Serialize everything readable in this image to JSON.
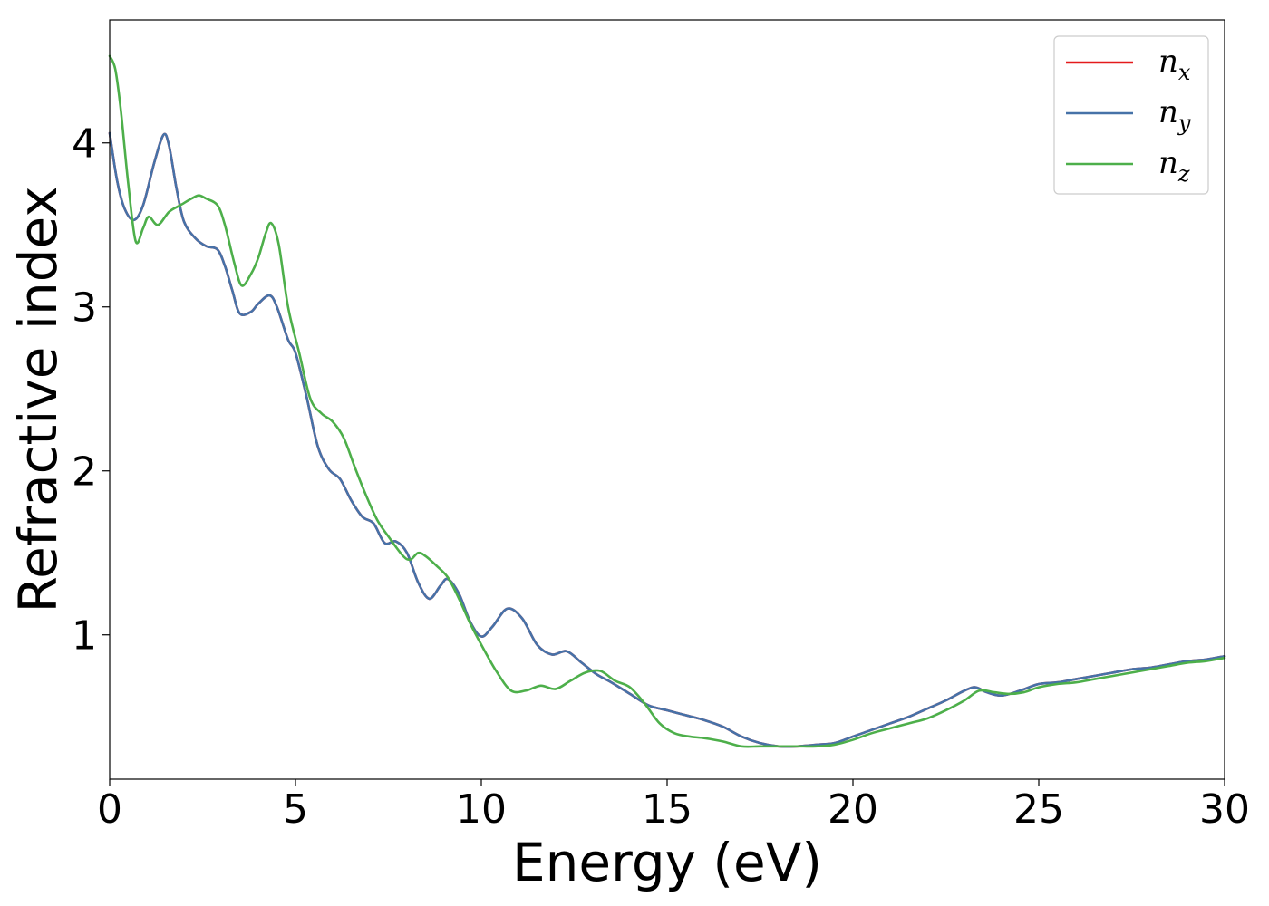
{
  "chart_data": {
    "type": "line",
    "xlabel": "Energy (eV)",
    "ylabel": "Refractive index",
    "xlim": [
      0,
      30
    ],
    "ylim": [
      0.12,
      4.75
    ],
    "xticks": [
      0,
      5,
      10,
      15,
      20,
      25,
      30
    ],
    "xtick_labels": [
      "0",
      "5",
      "10",
      "15",
      "20",
      "25",
      "30"
    ],
    "yticks": [
      1,
      2,
      3,
      4
    ],
    "ytick_labels": [
      "1",
      "2",
      "3",
      "4"
    ],
    "grid": false,
    "legend_position": "top-right",
    "series": [
      {
        "name": "n_x",
        "legend_main": "n",
        "legend_sub": "x",
        "color": "#e41a1c",
        "x": [
          0,
          0.2,
          0.4,
          0.65,
          0.9,
          1.2,
          1.45,
          1.6,
          1.8,
          2.0,
          2.3,
          2.6,
          2.9,
          3.1,
          3.3,
          3.5,
          3.8,
          4.0,
          4.3,
          4.5,
          4.8,
          5.0,
          5.3,
          5.6,
          5.9,
          6.2,
          6.5,
          6.8,
          7.1,
          7.4,
          7.7,
          8.0,
          8.3,
          8.6,
          8.9,
          9.1,
          9.4,
          9.7,
          10.0,
          10.3,
          10.7,
          11.1,
          11.5,
          11.9,
          12.3,
          12.7,
          13.1,
          13.5,
          14.0,
          14.5,
          15.0,
          15.5,
          16.0,
          16.5,
          17.0,
          17.5,
          18.0,
          18.5,
          19.0,
          19.5,
          20.0,
          20.5,
          21.0,
          21.5,
          22.0,
          22.5,
          23.0,
          23.3,
          23.6,
          24.0,
          24.5,
          25.0,
          25.5,
          26.0,
          26.5,
          27.0,
          27.5,
          28.0,
          28.5,
          29.0,
          29.5,
          30.0
        ],
        "y": [
          4.06,
          3.77,
          3.6,
          3.53,
          3.62,
          3.88,
          4.05,
          3.98,
          3.72,
          3.52,
          3.42,
          3.37,
          3.35,
          3.25,
          3.1,
          2.96,
          2.97,
          3.02,
          3.07,
          3.0,
          2.8,
          2.72,
          2.45,
          2.15,
          2.01,
          1.95,
          1.82,
          1.72,
          1.68,
          1.56,
          1.57,
          1.5,
          1.32,
          1.22,
          1.3,
          1.34,
          1.25,
          1.08,
          0.99,
          1.05,
          1.16,
          1.1,
          0.94,
          0.88,
          0.9,
          0.83,
          0.76,
          0.71,
          0.64,
          0.57,
          0.54,
          0.51,
          0.48,
          0.44,
          0.38,
          0.34,
          0.32,
          0.32,
          0.33,
          0.34,
          0.38,
          0.42,
          0.46,
          0.5,
          0.55,
          0.6,
          0.66,
          0.68,
          0.65,
          0.63,
          0.66,
          0.7,
          0.71,
          0.73,
          0.75,
          0.77,
          0.79,
          0.8,
          0.82,
          0.84,
          0.85,
          0.87
        ]
      },
      {
        "name": "n_y",
        "legend_main": "n",
        "legend_sub": "y",
        "color": "#4672a8",
        "x": [
          0,
          0.2,
          0.4,
          0.65,
          0.9,
          1.2,
          1.45,
          1.6,
          1.8,
          2.0,
          2.3,
          2.6,
          2.9,
          3.1,
          3.3,
          3.5,
          3.8,
          4.0,
          4.3,
          4.5,
          4.8,
          5.0,
          5.3,
          5.6,
          5.9,
          6.2,
          6.5,
          6.8,
          7.1,
          7.4,
          7.7,
          8.0,
          8.3,
          8.6,
          8.9,
          9.1,
          9.4,
          9.7,
          10.0,
          10.3,
          10.7,
          11.1,
          11.5,
          11.9,
          12.3,
          12.7,
          13.1,
          13.5,
          14.0,
          14.5,
          15.0,
          15.5,
          16.0,
          16.5,
          17.0,
          17.5,
          18.0,
          18.5,
          19.0,
          19.5,
          20.0,
          20.5,
          21.0,
          21.5,
          22.0,
          22.5,
          23.0,
          23.3,
          23.6,
          24.0,
          24.5,
          25.0,
          25.5,
          26.0,
          26.5,
          27.0,
          27.5,
          28.0,
          28.5,
          29.0,
          29.5,
          30.0
        ],
        "y": [
          4.06,
          3.77,
          3.6,
          3.53,
          3.62,
          3.88,
          4.05,
          3.98,
          3.72,
          3.52,
          3.42,
          3.37,
          3.35,
          3.25,
          3.1,
          2.96,
          2.97,
          3.02,
          3.07,
          3.0,
          2.8,
          2.72,
          2.45,
          2.15,
          2.01,
          1.95,
          1.82,
          1.72,
          1.68,
          1.56,
          1.57,
          1.5,
          1.32,
          1.22,
          1.3,
          1.34,
          1.25,
          1.08,
          0.99,
          1.05,
          1.16,
          1.1,
          0.94,
          0.88,
          0.9,
          0.83,
          0.76,
          0.71,
          0.64,
          0.57,
          0.54,
          0.51,
          0.48,
          0.44,
          0.38,
          0.34,
          0.32,
          0.32,
          0.33,
          0.34,
          0.38,
          0.42,
          0.46,
          0.5,
          0.55,
          0.6,
          0.66,
          0.68,
          0.65,
          0.63,
          0.66,
          0.7,
          0.71,
          0.73,
          0.75,
          0.77,
          0.79,
          0.8,
          0.82,
          0.84,
          0.85,
          0.87
        ]
      },
      {
        "name": "n_z",
        "legend_main": "n",
        "legend_sub": "z",
        "color": "#4daf4a",
        "x": [
          0,
          0.15,
          0.3,
          0.5,
          0.7,
          0.9,
          1.05,
          1.3,
          1.6,
          1.9,
          2.2,
          2.4,
          2.6,
          2.9,
          3.1,
          3.35,
          3.55,
          3.8,
          4.0,
          4.2,
          4.35,
          4.55,
          4.8,
          5.1,
          5.4,
          5.7,
          6.0,
          6.3,
          6.6,
          6.9,
          7.2,
          7.5,
          7.9,
          8.1,
          8.3,
          8.5,
          8.8,
          9.1,
          9.4,
          9.7,
          10.0,
          10.4,
          10.8,
          11.2,
          11.6,
          12.0,
          12.4,
          12.8,
          13.2,
          13.6,
          14.0,
          14.4,
          14.8,
          15.2,
          15.6,
          16.0,
          16.5,
          17.0,
          17.5,
          18.0,
          18.5,
          19.0,
          19.5,
          20.0,
          20.5,
          21.0,
          21.5,
          22.0,
          22.5,
          23.0,
          23.4,
          23.8,
          24.2,
          24.6,
          25.0,
          25.5,
          26.0,
          26.5,
          27.0,
          27.5,
          28.0,
          28.5,
          29.0,
          29.5,
          30.0
        ],
        "y": [
          4.53,
          4.45,
          4.2,
          3.75,
          3.4,
          3.48,
          3.55,
          3.5,
          3.58,
          3.62,
          3.66,
          3.68,
          3.66,
          3.62,
          3.5,
          3.27,
          3.13,
          3.2,
          3.3,
          3.45,
          3.51,
          3.38,
          3.0,
          2.72,
          2.44,
          2.35,
          2.3,
          2.2,
          2.02,
          1.85,
          1.7,
          1.6,
          1.48,
          1.46,
          1.5,
          1.48,
          1.42,
          1.35,
          1.22,
          1.07,
          0.94,
          0.78,
          0.66,
          0.66,
          0.69,
          0.67,
          0.72,
          0.77,
          0.78,
          0.72,
          0.68,
          0.58,
          0.46,
          0.4,
          0.38,
          0.37,
          0.35,
          0.32,
          0.32,
          0.32,
          0.32,
          0.32,
          0.33,
          0.36,
          0.4,
          0.43,
          0.46,
          0.49,
          0.54,
          0.6,
          0.66,
          0.65,
          0.64,
          0.65,
          0.68,
          0.7,
          0.71,
          0.73,
          0.75,
          0.77,
          0.79,
          0.81,
          0.83,
          0.84,
          0.86
        ]
      }
    ]
  }
}
